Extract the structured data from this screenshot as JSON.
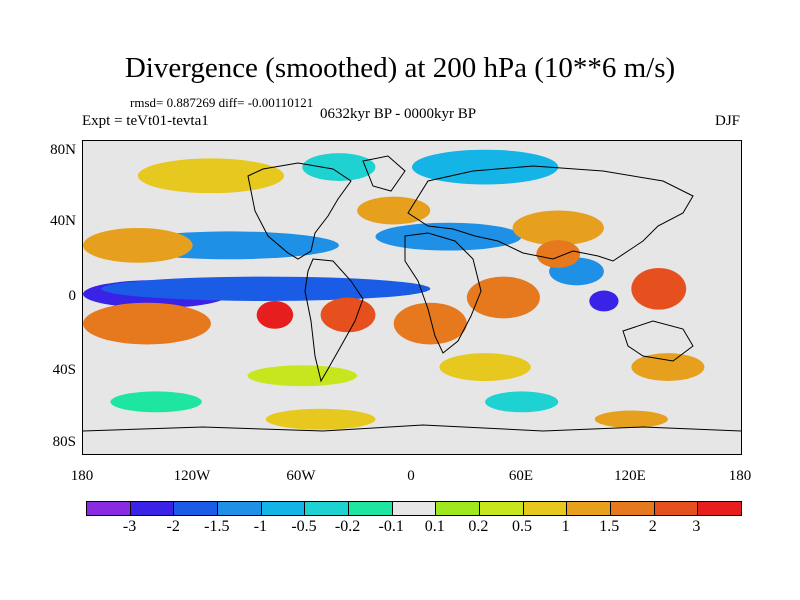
{
  "figure": {
    "title": "Divergence (smoothed) at 200 hPa (10**6 m/s)",
    "stats": "rmsd= 0.887269 diff= -0.00110121",
    "experiment": "Expt = teVt01-tevta1",
    "period": "0632kyr BP - 0000kyr BP",
    "season": "DJF"
  },
  "axes": {
    "y_labels": [
      "80N",
      "40N",
      "0",
      "40S",
      "80S"
    ],
    "x_labels": [
      "180",
      "120W",
      "60W",
      "0",
      "60E",
      "120E",
      "180"
    ]
  },
  "colorbar": {
    "colors": [
      "#8a2be2",
      "#3a22e6",
      "#1a5ce6",
      "#1e90e6",
      "#14b4e6",
      "#1ed2d2",
      "#1ee6a0",
      "#e6e6e6",
      "#a0e61e",
      "#c8e61e",
      "#e6c81e",
      "#e6a01e",
      "#e6781e",
      "#e6501e",
      "#e61e1e"
    ],
    "labels": [
      "-3",
      "-2",
      "-1.5",
      "-1",
      "-0.5",
      "-0.2",
      "-0.1",
      "0.1",
      "0.2",
      "0.5",
      "1",
      "1.5",
      "2",
      "3"
    ]
  },
  "map_fields": {
    "features": [
      {
        "color": "#3a22e6",
        "lon": -140,
        "lat": 2,
        "rx": 40,
        "ry": 8
      },
      {
        "color": "#1a5ce6",
        "lon": -80,
        "lat": 5,
        "rx": 90,
        "ry": 7
      },
      {
        "color": "#e61e1e",
        "lon": -150,
        "lat": -15,
        "rx": 18,
        "ry": 9
      },
      {
        "color": "#e6781e",
        "lon": -145,
        "lat": -15,
        "rx": 35,
        "ry": 12
      },
      {
        "color": "#e61e1e",
        "lon": -75,
        "lat": -10,
        "rx": 10,
        "ry": 8
      },
      {
        "color": "#e6501e",
        "lon": -35,
        "lat": -10,
        "rx": 15,
        "ry": 10
      },
      {
        "color": "#e6781e",
        "lon": 10,
        "lat": -15,
        "rx": 20,
        "ry": 12
      },
      {
        "color": "#e6781e",
        "lon": 50,
        "lat": 0,
        "rx": 20,
        "ry": 12
      },
      {
        "color": "#e6501e",
        "lon": 135,
        "lat": 5,
        "rx": 15,
        "ry": 12
      },
      {
        "color": "#3a22e6",
        "lon": 105,
        "lat": -2,
        "rx": 8,
        "ry": 6
      },
      {
        "color": "#1e90e6",
        "lon": -100,
        "lat": 30,
        "rx": 60,
        "ry": 8
      },
      {
        "color": "#e6a01e",
        "lon": -150,
        "lat": 30,
        "rx": 30,
        "ry": 10
      },
      {
        "color": "#e6c81e",
        "lon": -110,
        "lat": 70,
        "rx": 40,
        "ry": 10
      },
      {
        "color": "#1ed2d2",
        "lon": -40,
        "lat": 75,
        "rx": 20,
        "ry": 8
      },
      {
        "color": "#14b4e6",
        "lon": 40,
        "lat": 75,
        "rx": 40,
        "ry": 10
      },
      {
        "color": "#1e90e6",
        "lon": 20,
        "lat": 35,
        "rx": 40,
        "ry": 8
      },
      {
        "color": "#e6a01e",
        "lon": -10,
        "lat": 50,
        "rx": 20,
        "ry": 8
      },
      {
        "color": "#e6a01e",
        "lon": 80,
        "lat": 40,
        "rx": 25,
        "ry": 10
      },
      {
        "color": "#1e90e6",
        "lon": 90,
        "lat": 15,
        "rx": 15,
        "ry": 8
      },
      {
        "color": "#e6781e",
        "lon": 80,
        "lat": 25,
        "rx": 12,
        "ry": 8
      },
      {
        "color": "#c8e61e",
        "lon": -60,
        "lat": -45,
        "rx": 30,
        "ry": 6
      },
      {
        "color": "#e6c81e",
        "lon": 40,
        "lat": -40,
        "rx": 25,
        "ry": 8
      },
      {
        "color": "#e6a01e",
        "lon": 140,
        "lat": -40,
        "rx": 20,
        "ry": 8
      },
      {
        "color": "#1ee6a0",
        "lon": -140,
        "lat": -60,
        "rx": 25,
        "ry": 6
      },
      {
        "color": "#1ed2d2",
        "lon": 60,
        "lat": -60,
        "rx": 20,
        "ry": 6
      },
      {
        "color": "#e6c81e",
        "lon": -50,
        "lat": -70,
        "rx": 30,
        "ry": 6
      },
      {
        "color": "#e6a01e",
        "lon": 120,
        "lat": -70,
        "rx": 20,
        "ry": 5
      }
    ]
  }
}
